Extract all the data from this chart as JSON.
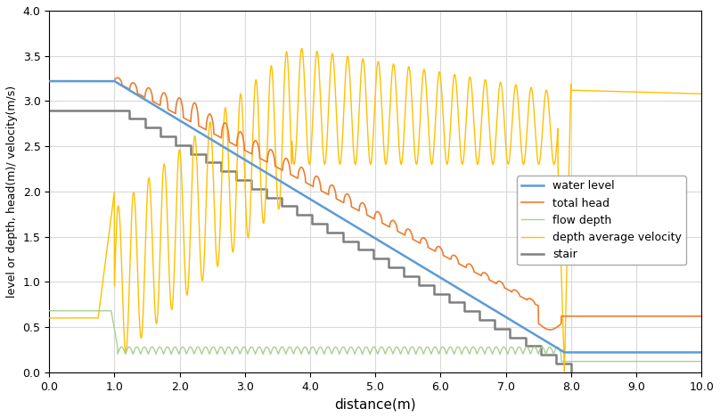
{
  "xlabel": "distance(m)",
  "ylabel": "level or depth, head(m)/ velocity(m/s)",
  "xlim": [
    0.0,
    10.0
  ],
  "ylim": [
    0.0,
    4.0
  ],
  "legend_labels": [
    "water level",
    "total head",
    "flow depth",
    "depth average velocity",
    "stair"
  ],
  "colors": {
    "water_level": "#5B9BD5",
    "total_head": "#ED7D31",
    "flow_depth": "#A9D18E",
    "velocity": "#FFC000",
    "stair": "#7F7F7F"
  },
  "background": "#FFFFFF",
  "grid_color": "#D9D9D9",
  "stair_params": {
    "x_start": 1.0,
    "x_end": 8.0,
    "y_top": 2.9,
    "y_bot": 0.0,
    "n_steps": 30
  }
}
